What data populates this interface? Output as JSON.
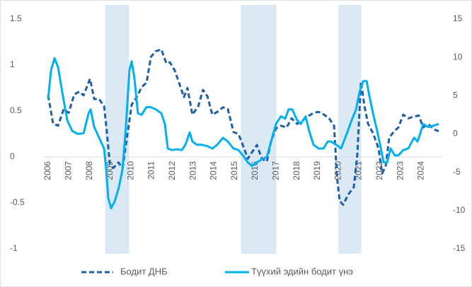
{
  "chart_data": {
    "type": "line",
    "xlim": [
      2005.75,
      2025.0
    ],
    "xticks": [
      2006,
      2007,
      2008,
      2009,
      2010,
      2011,
      2012,
      2013,
      2014,
      2015,
      2016,
      2017,
      2018,
      2019,
      2020,
      2021,
      2022,
      2023,
      2024
    ],
    "ylim": [
      -1,
      1.5
    ],
    "yticks": [
      -1,
      -0.5,
      0,
      0.5,
      1,
      1.5
    ],
    "y2lim": [
      -15,
      15
    ],
    "y2ticks": [
      -15,
      -10,
      -5,
      0,
      5,
      10,
      15
    ],
    "bands": [
      [
        2008.75,
        2009.9
      ],
      [
        2015.3,
        2017.0
      ],
      [
        2020.0,
        2021.1
      ]
    ],
    "band_color": "#dbe9f5",
    "legend": "bottom",
    "series": [
      {
        "name": "Бодит ДНБ",
        "color": "#1f5fa8",
        "dash": true,
        "axis": "y",
        "x": [
          2006.0,
          2006.24,
          2006.48,
          2006.75,
          2006.99,
          2007.26,
          2007.5,
          2007.71,
          2008.02,
          2008.22,
          2008.46,
          2008.7,
          2008.81,
          2008.98,
          2009.15,
          2009.39,
          2009.59,
          2009.83,
          2010.03,
          2010.27,
          2010.51,
          2010.75,
          2010.96,
          2011.19,
          2011.46,
          2011.7,
          2011.87,
          2012.11,
          2012.31,
          2012.55,
          2012.72,
          2012.96,
          2013.24,
          2013.47,
          2013.68,
          2013.92,
          2014.16,
          2014.43,
          2014.67,
          2014.94,
          2015.18,
          2015.39,
          2015.63,
          2015.83,
          2016.07,
          2016.31,
          2016.55,
          2016.75,
          2016.99,
          2017.23,
          2017.5,
          2017.74,
          2018.01,
          2018.29,
          2018.53,
          2018.8,
          2019.04,
          2019.31,
          2019.55,
          2019.79,
          2019.93,
          2020.06,
          2020.23,
          2020.47,
          2020.74,
          2020.91,
          2021.09,
          2021.26,
          2021.43,
          2021.67,
          2021.94,
          2022.11,
          2022.28,
          2022.45,
          2022.69,
          2022.89,
          2023.13,
          2023.37,
          2023.65,
          2023.88,
          2024.09,
          2024.33,
          2024.6,
          2024.84
        ],
        "values": [
          0.67,
          0.36,
          0.34,
          0.52,
          0.48,
          0.68,
          0.71,
          0.67,
          0.85,
          0.63,
          0.63,
          0.55,
          0.32,
          -0.08,
          -0.12,
          -0.06,
          -0.12,
          0.25,
          0.57,
          0.65,
          0.76,
          0.81,
          1.09,
          1.15,
          1.17,
          1.02,
          1.03,
          0.94,
          0.81,
          0.65,
          0.75,
          0.46,
          0.55,
          0.73,
          0.66,
          0.46,
          0.49,
          0.54,
          0.52,
          0.27,
          0.25,
          0.13,
          -0.02,
          0.05,
          0.13,
          -0.02,
          -0.05,
          0.17,
          0.31,
          0.34,
          0.32,
          0.42,
          0.36,
          0.4,
          0.44,
          0.48,
          0.49,
          0.46,
          0.42,
          0.34,
          -0.22,
          -0.48,
          -0.52,
          -0.41,
          -0.33,
          0.02,
          0.82,
          0.55,
          0.36,
          0.26,
          0.09,
          -0.18,
          -0.1,
          0.21,
          0.28,
          0.32,
          0.46,
          0.42,
          0.44,
          0.45,
          0.32,
          0.36,
          0.3,
          0.28
        ]
      },
      {
        "name": "Түүхий эдийн бодит үнэ",
        "color": "#00b0f0",
        "dash": false,
        "axis": "y2",
        "x": [
          2006.0,
          2006.14,
          2006.31,
          2006.48,
          2006.68,
          2006.92,
          2007.16,
          2007.43,
          2007.71,
          2007.95,
          2008.05,
          2008.22,
          2008.46,
          2008.7,
          2008.8,
          2008.9,
          2009.04,
          2009.21,
          2009.41,
          2009.58,
          2009.75,
          2009.92,
          2010.03,
          2010.16,
          2010.33,
          2010.51,
          2010.74,
          2010.95,
          2011.19,
          2011.46,
          2011.63,
          2011.77,
          2011.97,
          2012.21,
          2012.45,
          2012.62,
          2012.83,
          2012.96,
          2013.17,
          2013.41,
          2013.68,
          2013.92,
          2014.16,
          2014.43,
          2014.67,
          2014.94,
          2015.18,
          2015.39,
          2015.63,
          2015.83,
          2016.07,
          2016.31,
          2016.55,
          2016.75,
          2016.99,
          2017.23,
          2017.43,
          2017.6,
          2017.77,
          2018.01,
          2018.18,
          2018.42,
          2018.59,
          2018.8,
          2019.04,
          2019.28,
          2019.48,
          2019.65,
          2019.89,
          2020.13,
          2020.4,
          2020.64,
          2020.85,
          2021.02,
          2021.19,
          2021.36,
          2021.49,
          2021.67,
          2021.87,
          2022.01,
          2022.18,
          2022.35,
          2022.52,
          2022.72,
          2022.89,
          2023.13,
          2023.37,
          2023.65,
          2023.82,
          2024.09,
          2024.33,
          2024.6,
          2024.84
        ],
        "values": [
          4.6,
          8.3,
          9.9,
          8.7,
          5.5,
          1.8,
          0.4,
          0,
          0.1,
          2.7,
          3.2,
          0.9,
          -0.5,
          -1.9,
          -4.7,
          -8.4,
          -9.7,
          -8.8,
          -7.0,
          -4.7,
          0.9,
          8.3,
          9.5,
          7.3,
          2.7,
          2.5,
          3.5,
          3.5,
          3.2,
          2.7,
          1.3,
          -1.9,
          -2.1,
          -2.0,
          -2.1,
          -1.4,
          0.2,
          -1.0,
          -1.4,
          -1.4,
          -1.6,
          -1.9,
          -1.4,
          -0.5,
          -1.0,
          -1.9,
          -2.1,
          -2.8,
          -3.7,
          -4.2,
          -3.7,
          -3.3,
          -3.0,
          -1.0,
          1.3,
          2.3,
          2.0,
          3.2,
          3.2,
          1.8,
          1.3,
          2.3,
          0.4,
          -1.4,
          -1.9,
          -1.9,
          -1.0,
          -1.0,
          -1.4,
          -1.9,
          0,
          1.8,
          3.2,
          5.5,
          6.9,
          6.9,
          5.0,
          2.7,
          0.4,
          -1.4,
          -3.7,
          -3.7,
          -1.9,
          -2.8,
          -2.8,
          -2.1,
          -1.9,
          -0.5,
          -1.0,
          1.3,
          0.9,
          1.1,
          1.3
        ]
      }
    ]
  }
}
